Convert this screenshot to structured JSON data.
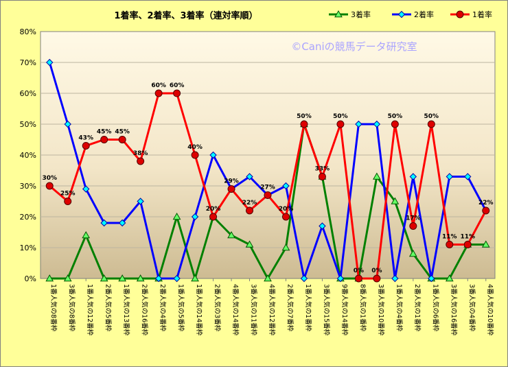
{
  "chart_data": {
    "type": "line",
    "title": "1着率、2着率、3着率（連対率順）",
    "watermark": "©Caniの競馬データ研究室",
    "ylim": [
      0,
      80
    ],
    "yticks": [
      "0%",
      "10%",
      "20%",
      "30%",
      "40%",
      "50%",
      "60%",
      "70%",
      "80%"
    ],
    "categories": [
      "1番人気の8番枠",
      "3番人気の8番枠",
      "1番人気の12番枠",
      "2番人気の5番枠",
      "1番人気の13番枠",
      "2番人気の16番枠",
      "2番人気の4番枠",
      "1番人気の5番枠",
      "1番人気の14番枠",
      "2番人気の3番枠",
      "4番人気の14番枠",
      "3番人気の11番枠",
      "4番人気の12番枠",
      "2番人気の7番枠",
      "1番人気の1番枠",
      "3番人気の15番枠",
      "9番人気の14番枠",
      "8番人気の1番枠",
      "3番人気の10番枠",
      "1番人気の4番枠",
      "2番人気の1番枠",
      "1番人気の6番枠",
      "3番人気の16番枠",
      "3番人気の4番枠",
      "4番人気の10番枠"
    ],
    "legend_position": "top-right",
    "series": [
      {
        "name": "3着率",
        "color": "#008000",
        "marker": "triangle",
        "marker_color": "#66ff66",
        "values": [
          0,
          0,
          14,
          0,
          0,
          0,
          0,
          20,
          0,
          20,
          14,
          11,
          0,
          10,
          50,
          33,
          0,
          0,
          33,
          25,
          8,
          0,
          0,
          11,
          11
        ]
      },
      {
        "name": "2着率",
        "color": "#0000ff",
        "marker": "diamond",
        "marker_color": "#00ffff",
        "values": [
          70,
          50,
          29,
          18,
          18,
          25,
          0,
          0,
          20,
          40,
          29,
          33,
          27,
          30,
          0,
          17,
          0,
          50,
          50,
          0,
          33,
          0,
          33,
          33,
          22
        ]
      },
      {
        "name": "1着率",
        "color": "#ff0000",
        "marker": "circle",
        "marker_color": "#dd0000",
        "values": [
          30,
          25,
          43,
          45,
          45,
          38,
          60,
          60,
          40,
          20,
          29,
          22,
          27,
          20,
          50,
          33,
          50,
          0,
          0,
          50,
          17,
          50,
          11,
          11,
          22
        ]
      }
    ],
    "data_labels": [
      {
        "series": "1着率",
        "index": 0,
        "text": "30%"
      },
      {
        "series": "1着率",
        "index": 1,
        "text": "25%"
      },
      {
        "series": "1着率",
        "index": 2,
        "text": "43%"
      },
      {
        "series": "1着率",
        "index": 3,
        "text": "45%"
      },
      {
        "series": "1着率",
        "index": 4,
        "text": "45%"
      },
      {
        "series": "1着率",
        "index": 5,
        "text": "38%"
      },
      {
        "series": "1着率",
        "index": 6,
        "text": "60%"
      },
      {
        "series": "1着率",
        "index": 7,
        "text": "60%"
      },
      {
        "series": "1着率",
        "index": 8,
        "text": "40%"
      },
      {
        "series": "1着率",
        "index": 9,
        "text": "20%"
      },
      {
        "series": "1着率",
        "index": 10,
        "text": "29%"
      },
      {
        "series": "1着率",
        "index": 11,
        "text": "22%"
      },
      {
        "series": "1着率",
        "index": 12,
        "text": "27%"
      },
      {
        "series": "1着率",
        "index": 13,
        "text": "20%"
      },
      {
        "series": "1着率",
        "index": 14,
        "text": "50%"
      },
      {
        "series": "1着率",
        "index": 15,
        "text": "33%"
      },
      {
        "series": "1着率",
        "index": 16,
        "text": "50%"
      },
      {
        "series": "1着率",
        "index": 17,
        "text": "0%"
      },
      {
        "series": "1着率",
        "index": 18,
        "text": "0%"
      },
      {
        "series": "1着率",
        "index": 19,
        "text": "50%"
      },
      {
        "series": "1着率",
        "index": 20,
        "text": "17%"
      },
      {
        "series": "1着率",
        "index": 21,
        "text": "50%"
      },
      {
        "series": "1着率",
        "index": 22,
        "text": "11%"
      },
      {
        "series": "1着率",
        "index": 23,
        "text": "11%"
      },
      {
        "series": "1着率",
        "index": 24,
        "text": "22%"
      }
    ]
  }
}
